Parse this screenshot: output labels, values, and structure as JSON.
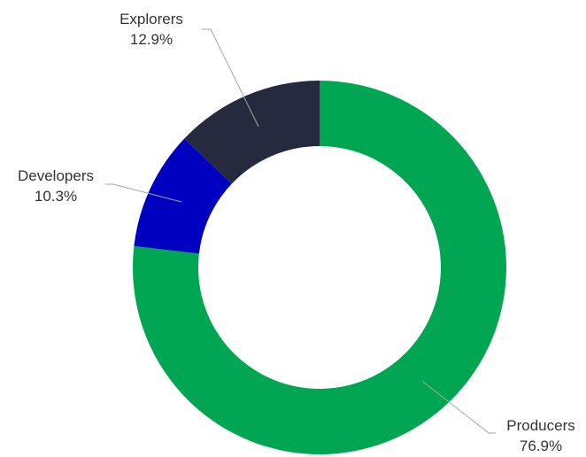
{
  "chart_data": {
    "type": "pie",
    "variant": "donut",
    "title": "",
    "legend": "none",
    "slices": [
      {
        "name": "Producers",
        "value": 76.9,
        "label": "76.9%",
        "color": "#00A651"
      },
      {
        "name": "Developers",
        "value": 10.3,
        "label": "10.3%",
        "color": "#0000C0"
      },
      {
        "name": "Explorers",
        "value": 12.9,
        "label": "12.9%",
        "color": "#262A3E"
      }
    ]
  }
}
